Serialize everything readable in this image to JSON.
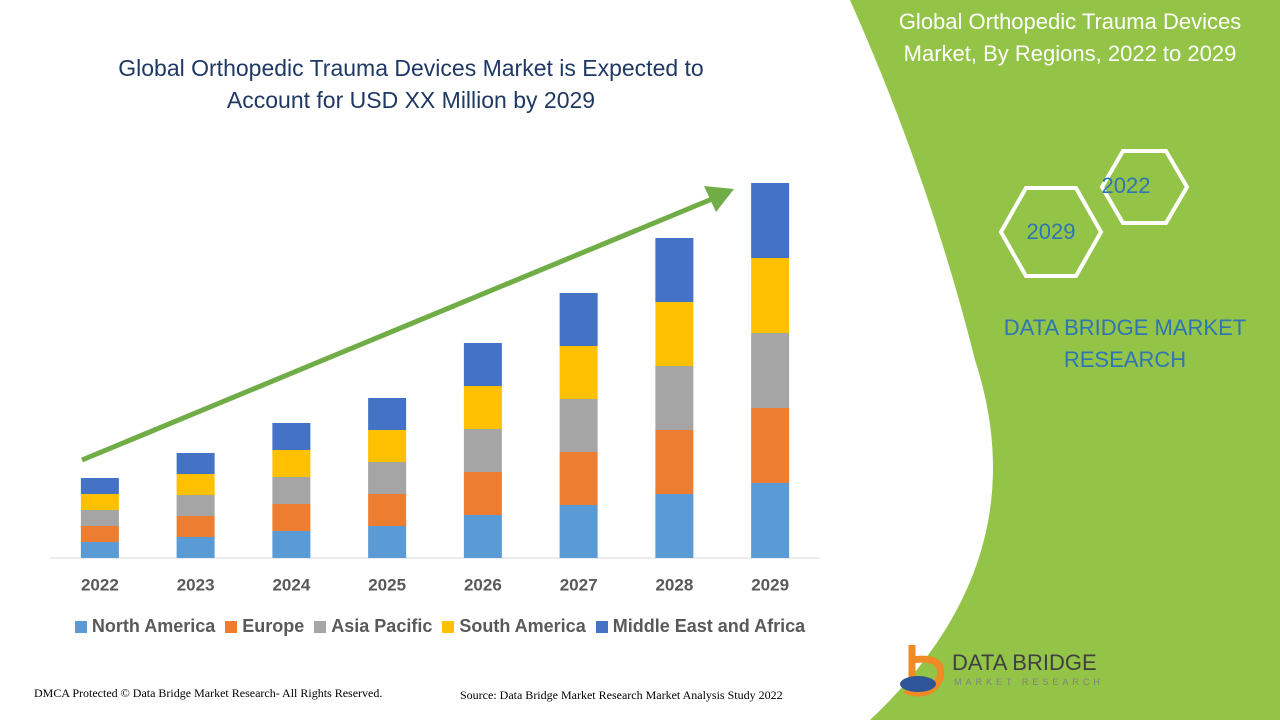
{
  "header": {
    "title": "Global Orthopedic Trauma Devices Market, By Regions, 2022 to 2029"
  },
  "hexagons": [
    "2022",
    "2029"
  ],
  "brand": "DATA BRIDGE MARKET RESEARCH",
  "logo": {
    "name": "DATA BRIDGE",
    "tagline": "MARKET RESEARCH"
  },
  "footer": {
    "copyright": "DMCA Protected © Data Bridge Market Research- All Rights Reserved.",
    "source": "Source: Data Bridge Market Research Market Analysis Study 2022"
  },
  "chart_data": {
    "type": "bar",
    "stacked": true,
    "title": "Global Orthopedic Trauma Devices Market is Expected to Account for USD XX Million by 2029",
    "categories": [
      "2022",
      "2023",
      "2024",
      "2025",
      "2026",
      "2027",
      "2028",
      "2029"
    ],
    "series": [
      {
        "name": "North America",
        "color": "#5b9bd5",
        "values": [
          16,
          21,
          27,
          32,
          43,
          53,
          64,
          75
        ]
      },
      {
        "name": "Europe",
        "color": "#ed7d31",
        "values": [
          16,
          21,
          27,
          32,
          43,
          53,
          64,
          75
        ]
      },
      {
        "name": "Asia Pacific",
        "color": "#a5a5a5",
        "values": [
          16,
          21,
          27,
          32,
          43,
          53,
          64,
          75
        ]
      },
      {
        "name": "South America",
        "color": "#ffc000",
        "values": [
          16,
          21,
          27,
          32,
          43,
          53,
          64,
          75
        ]
      },
      {
        "name": "Middle East and Africa",
        "color": "#4472c4",
        "values": [
          16,
          21,
          27,
          32,
          43,
          53,
          64,
          75
        ]
      }
    ]
  }
}
